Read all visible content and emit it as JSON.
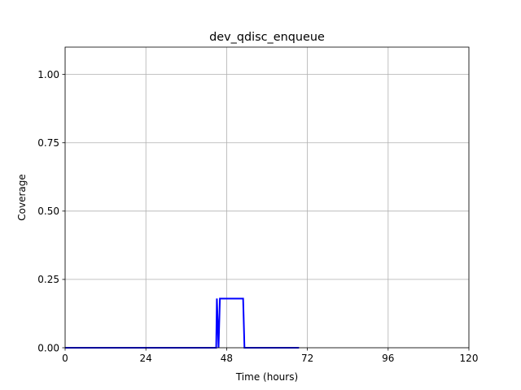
{
  "chart_data": {
    "type": "line",
    "title": "dev_qdisc_enqueue",
    "xlabel": "Time (hours)",
    "ylabel": "Coverage",
    "xlim": [
      0,
      120
    ],
    "ylim": [
      0,
      1.1
    ],
    "xticks": [
      0,
      24,
      48,
      72,
      96,
      120
    ],
    "xtick_labels": [
      "0",
      "24",
      "48",
      "72",
      "96",
      "120"
    ],
    "yticks": [
      0.0,
      0.25,
      0.5,
      0.75,
      1.0
    ],
    "ytick_labels": [
      "0.00",
      "0.25",
      "0.50",
      "0.75",
      "1.00"
    ],
    "grid": true,
    "series": [
      {
        "color": "#0000ff",
        "x": [
          0,
          10,
          20,
          30,
          40,
          44.9,
          45.1,
          45.6,
          46,
          47,
          50,
          52.9,
          53.3,
          56,
          60,
          64,
          69.5
        ],
        "y": [
          0,
          0,
          0,
          0,
          0,
          0,
          0.18,
          0,
          0.18,
          0.18,
          0.18,
          0.18,
          0,
          0,
          0,
          0,
          0
        ]
      }
    ]
  }
}
